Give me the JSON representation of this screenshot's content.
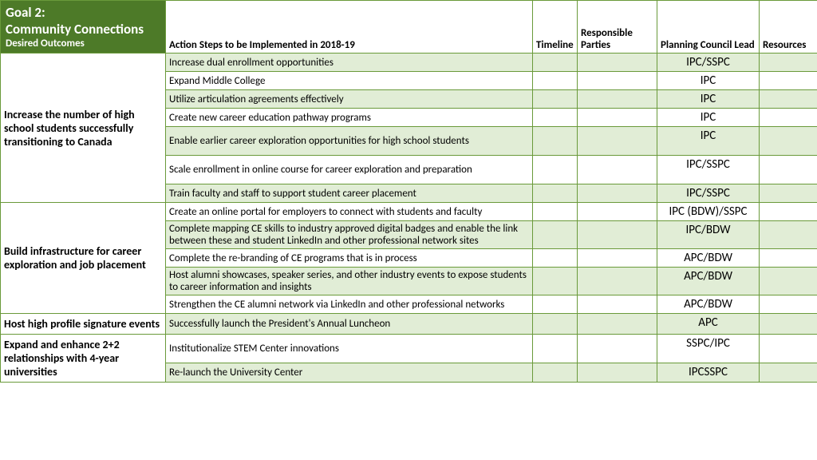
{
  "header": {
    "goal_line1": "Goal 2:",
    "goal_line2": "Community Connections",
    "desired": "Desired Outcomes",
    "action": "Action Steps to be Implemented in 2018-19",
    "timeline": "Timeline",
    "parties": "Responsible Parties",
    "lead": "Planning Council Lead",
    "resources": "Resources"
  },
  "colors": {
    "header_bg": "#4d7a28",
    "border": "#6a9a3a",
    "alt_row": "#e1edd6"
  },
  "groups": [
    {
      "outcome": "Increase the number of high school students successfully transitioning to Canada",
      "rows": [
        {
          "action": "Increase dual enrollment opportunities",
          "lead": "IPC/SSPC",
          "alt": true
        },
        {
          "action": "Expand Middle College",
          "lead": "IPC",
          "alt": false
        },
        {
          "action": "Utilize articulation agreements effectively",
          "lead": "IPC",
          "alt": true
        },
        {
          "action": "Create new career education pathway programs",
          "lead": "IPC",
          "alt": false
        },
        {
          "action": "Enable earlier career exploration opportunities for high school students",
          "lead": "IPC",
          "alt": true,
          "tall": true
        },
        {
          "action": "Scale enrollment in online course for career exploration and preparation",
          "lead": "IPC/SSPC",
          "alt": false,
          "tall": true
        },
        {
          "action": "Train faculty and staff to support student career placement",
          "lead": "IPC/SSPC",
          "alt": true
        }
      ]
    },
    {
      "outcome": "Build infrastructure for career exploration and job placement",
      "rows": [
        {
          "action": "Create an online portal for employers to connect with students and faculty",
          "lead": "IPC (BDW)/SSPC",
          "alt": false
        },
        {
          "action": "Complete mapping CE skills to industry approved digital badges and enable the link between these and student LinkedIn and other professional network sites",
          "lead": "IPC/BDW",
          "alt": true
        },
        {
          "action": "Complete the re-branding of CE programs that is in process",
          "lead": "APC/BDW",
          "alt": false
        },
        {
          "action": "Host alumni showcases, speaker series, and other industry events to expose students to career information and insights",
          "lead": "APC/BDW",
          "alt": true
        },
        {
          "action": "Strengthen the CE alumni network via LinkedIn and other professional networks",
          "lead": "APC/BDW",
          "alt": false
        }
      ]
    },
    {
      "outcome": "Host high profile signature events",
      "rows": [
        {
          "action": "Successfully launch the President's Annual Luncheon",
          "lead": "APC",
          "alt": true
        }
      ]
    },
    {
      "outcome": "Expand and enhance 2+2 relationships with 4-year universities",
      "rows": [
        {
          "action": "Institutionalize STEM Center innovations",
          "lead": "SSPC/IPC",
          "alt": false,
          "tall": true
        },
        {
          "action": "Re-launch the University Center",
          "lead": "IPCSSPC",
          "alt": true
        }
      ]
    }
  ]
}
